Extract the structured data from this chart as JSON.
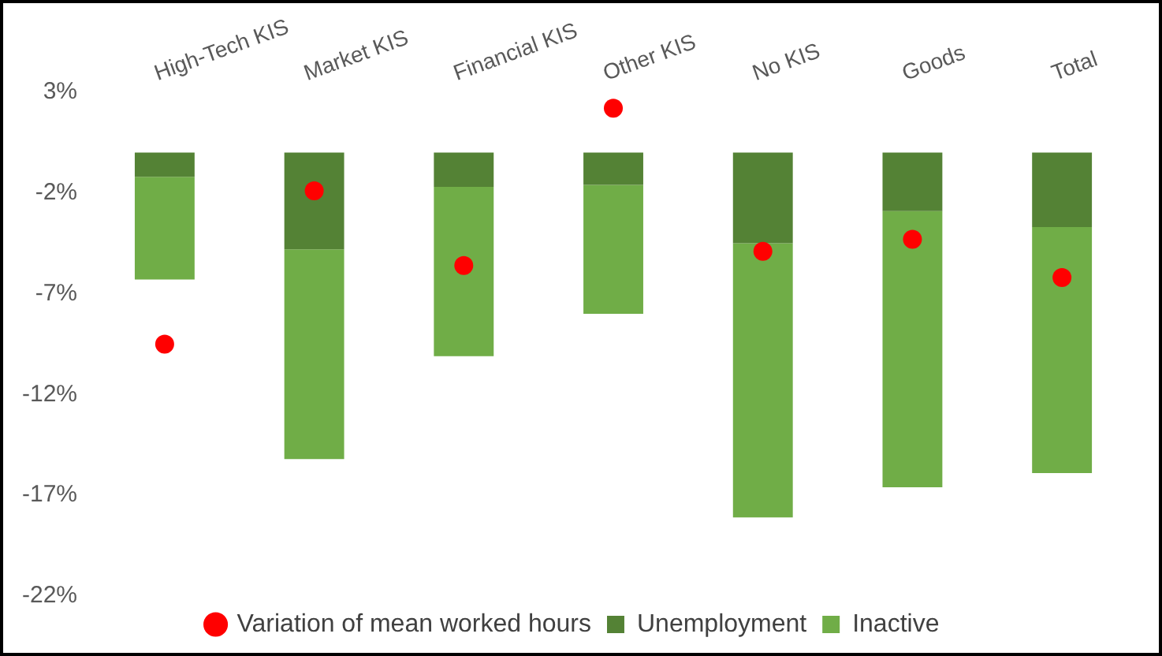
{
  "chart_data": {
    "type": "bar",
    "stacked": true,
    "categories": [
      "High-Tech KIS",
      "Market KIS",
      "Financial KIS",
      "Other KIS",
      "No KIS",
      "Goods",
      "Total"
    ],
    "series": [
      {
        "name": "Unemployment",
        "color": "#548235",
        "values": [
          -1.2,
          -4.8,
          -1.7,
          -1.6,
          -4.5,
          -2.9,
          -3.7
        ]
      },
      {
        "name": "Inactive",
        "color": "#70ad47",
        "values": [
          -5.1,
          -10.4,
          -8.4,
          -6.4,
          -13.6,
          -13.7,
          -12.2
        ]
      },
      {
        "name": "Variation of mean worked hours",
        "type": "scatter",
        "color": "#ff0000",
        "marker": "circle",
        "values": [
          -9.5,
          -1.9,
          -5.6,
          2.2,
          -4.9,
          -4.3,
          -6.2
        ]
      }
    ],
    "ylim": [
      -22,
      3
    ],
    "yticks": [
      {
        "value": 3,
        "label": "3%"
      },
      {
        "value": -2,
        "label": "-2%"
      },
      {
        "value": -7,
        "label": "-7%"
      },
      {
        "value": -12,
        "label": "-12%"
      },
      {
        "value": -17,
        "label": "-17%"
      },
      {
        "value": -22,
        "label": "-22%"
      }
    ],
    "grid": false,
    "legend": "bottom"
  }
}
